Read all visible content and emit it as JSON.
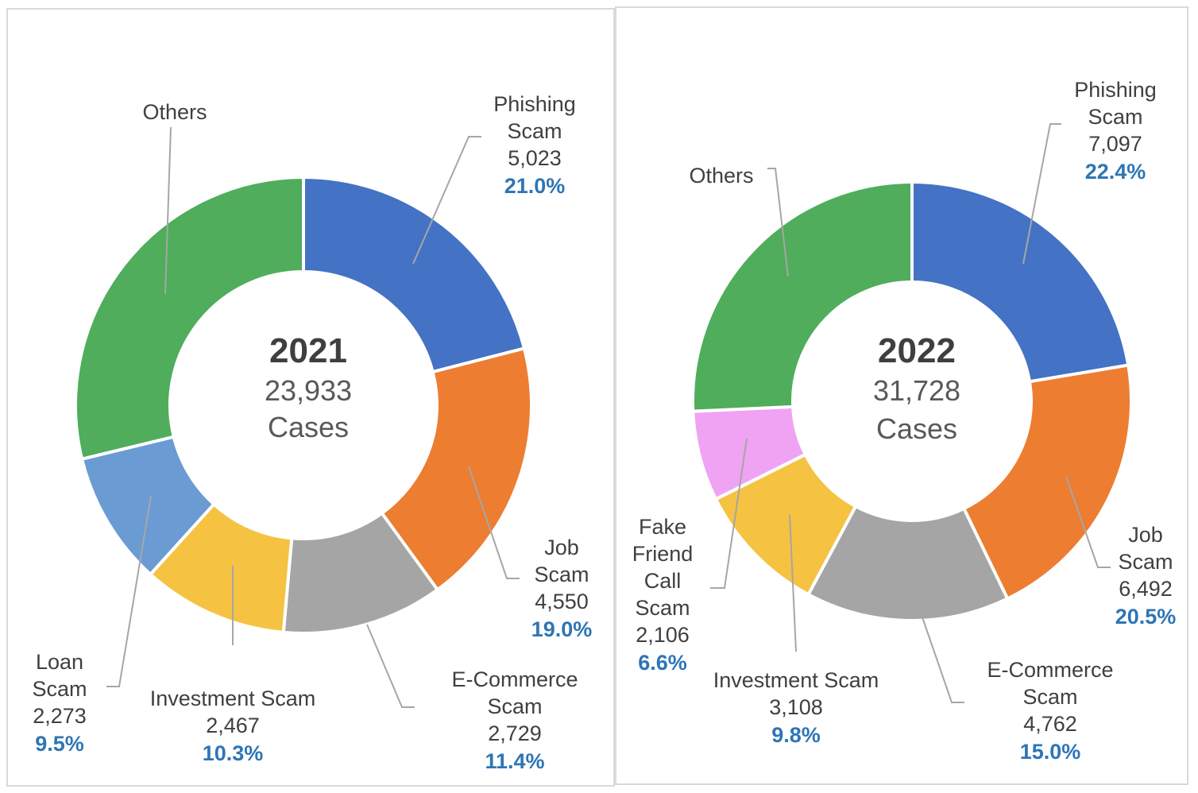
{
  "chart_data": [
    {
      "type": "pie",
      "variant": "donut",
      "center_title": "2021",
      "center_total": "23,933",
      "center_unit": "Cases",
      "slices": [
        {
          "label": [
            "Phishing",
            "Scam"
          ],
          "value": 5023,
          "value_text": "5,023",
          "percent": "21.0%",
          "color": "#4472c4"
        },
        {
          "label": [
            "Job",
            "Scam"
          ],
          "value": 4550,
          "value_text": "4,550",
          "percent": "19.0%",
          "color": "#ed7d31"
        },
        {
          "label": [
            "E-Commerce",
            "Scam"
          ],
          "value": 2729,
          "value_text": "2,729",
          "percent": "11.4%",
          "color": "#a5a5a5"
        },
        {
          "label": [
            "Investment Scam"
          ],
          "value": 2467,
          "value_text": "2,467",
          "percent": "10.3%",
          "color": "#f5c242"
        },
        {
          "label": [
            "Loan",
            "Scam"
          ],
          "value": 2273,
          "value_text": "2,273",
          "percent": "9.5%",
          "color": "#6a9bd3"
        },
        {
          "label": [
            "Others"
          ],
          "value": 6891,
          "value_text": "",
          "percent": "",
          "color": "#4fad5b"
        }
      ]
    },
    {
      "type": "pie",
      "variant": "donut",
      "center_title": "2022",
      "center_total": "31,728",
      "center_unit": "Cases",
      "slices": [
        {
          "label": [
            "Phishing",
            "Scam"
          ],
          "value": 7097,
          "value_text": "7,097",
          "percent": "22.4%",
          "color": "#4472c4"
        },
        {
          "label": [
            "Job",
            "Scam"
          ],
          "value": 6492,
          "value_text": "6,492",
          "percent": "20.5%",
          "color": "#ed7d31"
        },
        {
          "label": [
            "E-Commerce",
            "Scam"
          ],
          "value": 4762,
          "value_text": "4,762",
          "percent": "15.0%",
          "color": "#a5a5a5"
        },
        {
          "label": [
            "Investment Scam"
          ],
          "value": 3108,
          "value_text": "3,108",
          "percent": "9.8%",
          "color": "#f5c242"
        },
        {
          "label": [
            "Fake",
            "Friend",
            "Call",
            "Scam"
          ],
          "value": 2106,
          "value_text": "2,106",
          "percent": "6.6%",
          "color": "#f0a3f3"
        },
        {
          "label": [
            "Others"
          ],
          "value": 8163,
          "value_text": "",
          "percent": "",
          "color": "#4fad5b"
        }
      ]
    }
  ]
}
